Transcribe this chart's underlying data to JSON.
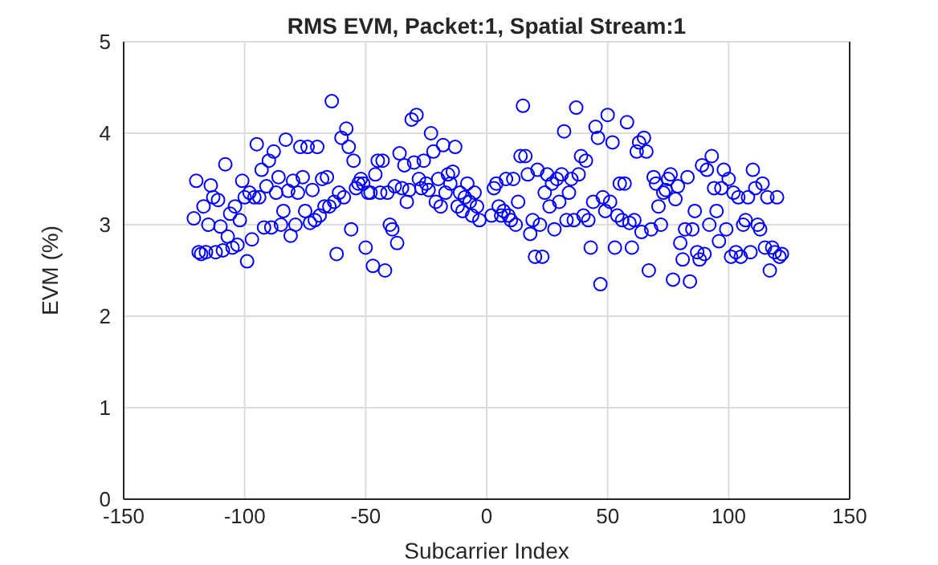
{
  "chart_data": {
    "type": "scatter",
    "title": "RMS EVM, Packet:1, Spatial Stream:1",
    "xlabel": "Subcarrier Index",
    "ylabel": "EVM (%)",
    "xlim": [
      -150,
      150
    ],
    "ylim": [
      0,
      5
    ],
    "xticks": [
      -150,
      -100,
      -50,
      0,
      50,
      100,
      150
    ],
    "yticks": [
      0,
      1,
      2,
      3,
      4,
      5
    ],
    "grid": true,
    "marker": "circle",
    "legend": false,
    "series": [
      {
        "color": "#0000ff",
        "x": [
          -121,
          -120,
          -119,
          -118,
          -117,
          -116,
          -115,
          -114,
          -113,
          -112,
          -111,
          -110,
          -109,
          -108,
          -107,
          -106,
          -105,
          -104,
          -103,
          -102,
          -101,
          -100,
          -99,
          -98,
          -97,
          -96,
          -95,
          -94,
          -93,
          -92,
          -91,
          -90,
          -89,
          -88,
          -87,
          -86,
          -85,
          -84,
          -83,
          -82,
          -81,
          -80,
          -79,
          -78,
          -77,
          -76,
          -75,
          -74,
          -73,
          -72,
          -71,
          -70,
          -69,
          -68,
          -67,
          -66,
          -65,
          -64,
          -63,
          -62,
          -61,
          -60,
          -59,
          -58,
          -57,
          -56,
          -55,
          -54,
          -53,
          -52,
          -51,
          -50,
          -49,
          -48,
          -47,
          -46,
          -45,
          -44,
          -43,
          -42,
          -41,
          -40,
          -39,
          -38,
          -37,
          -36,
          -35,
          -34,
          -33,
          -32,
          -31,
          -30,
          -29,
          -28,
          -27,
          -26,
          -25,
          -24,
          -23,
          -22,
          -21,
          -20,
          -19,
          -18,
          -17,
          -16,
          -15,
          -14,
          -13,
          -12,
          -11,
          -10,
          -9,
          -8,
          -7,
          -6,
          -5,
          -4,
          -3,
          2,
          3,
          4,
          5,
          6,
          7,
          8,
          9,
          10,
          11,
          12,
          13,
          14,
          15,
          16,
          17,
          18,
          19,
          20,
          21,
          22,
          23,
          24,
          25,
          26,
          27,
          28,
          29,
          30,
          31,
          32,
          33,
          34,
          35,
          36,
          37,
          38,
          39,
          40,
          41,
          42,
          43,
          44,
          45,
          46,
          47,
          48,
          49,
          50,
          51,
          52,
          53,
          54,
          55,
          56,
          57,
          58,
          59,
          60,
          61,
          62,
          63,
          64,
          65,
          66,
          67,
          68,
          69,
          70,
          71,
          72,
          73,
          74,
          75,
          76,
          77,
          78,
          79,
          80,
          81,
          82,
          83,
          84,
          85,
          86,
          87,
          88,
          89,
          90,
          91,
          92,
          93,
          94,
          95,
          96,
          97,
          98,
          99,
          100,
          101,
          102,
          103,
          104,
          105,
          106,
          107,
          108,
          109,
          110,
          111,
          112,
          113,
          114,
          115,
          116,
          117,
          118,
          119,
          120,
          121,
          122
        ],
        "values": [
          3.07,
          3.48,
          2.7,
          2.68,
          3.2,
          2.7,
          3.0,
          3.43,
          3.3,
          2.7,
          3.27,
          2.98,
          2.72,
          3.66,
          2.87,
          3.12,
          2.75,
          3.2,
          2.78,
          3.05,
          3.48,
          3.3,
          2.6,
          3.35,
          2.84,
          3.3,
          3.88,
          3.3,
          3.6,
          2.97,
          3.42,
          3.7,
          2.97,
          3.8,
          3.35,
          3.52,
          3.0,
          3.15,
          3.93,
          3.37,
          2.88,
          3.48,
          3.0,
          3.35,
          3.85,
          3.52,
          3.15,
          3.85,
          3.02,
          3.38,
          3.05,
          3.85,
          3.1,
          3.5,
          3.2,
          3.52,
          3.2,
          4.35,
          3.25,
          2.68,
          3.35,
          3.95,
          3.3,
          4.05,
          3.85,
          2.95,
          3.7,
          3.4,
          3.45,
          3.5,
          3.45,
          2.75,
          3.35,
          3.35,
          2.55,
          3.55,
          3.7,
          3.35,
          3.7,
          2.5,
          3.35,
          3.0,
          2.95,
          3.42,
          2.8,
          3.78,
          3.4,
          3.65,
          3.25,
          3.38,
          4.15,
          3.68,
          4.2,
          3.5,
          3.4,
          3.7,
          3.45,
          3.38,
          4.0,
          3.8,
          3.25,
          3.5,
          3.2,
          3.87,
          3.35,
          3.55,
          3.45,
          3.58,
          3.85,
          3.2,
          3.35,
          3.15,
          3.3,
          3.45,
          3.25,
          3.1,
          3.35,
          3.2,
          3.05,
          3.1,
          3.4,
          3.45,
          3.2,
          3.1,
          3.15,
          3.5,
          3.1,
          3.05,
          3.5,
          3.0,
          3.25,
          3.75,
          4.3,
          3.75,
          3.55,
          2.9,
          3.05,
          2.65,
          3.6,
          3.0,
          2.65,
          3.35,
          3.55,
          3.2,
          3.45,
          2.95,
          3.5,
          3.25,
          3.55,
          4.02,
          3.05,
          3.35,
          3.5,
          3.05,
          4.28,
          3.55,
          3.75,
          3.1,
          3.7,
          3.05,
          2.75,
          3.25,
          4.07,
          3.95,
          2.35,
          3.3,
          3.15,
          4.2,
          3.25,
          3.9,
          2.75,
          3.1,
          3.45,
          3.05,
          3.45,
          4.12,
          3.02,
          2.75,
          3.05,
          3.8,
          3.9,
          2.92,
          3.95,
          3.8,
          2.5,
          2.95,
          3.52,
          3.45,
          3.2,
          3.0,
          3.35,
          3.38,
          3.5,
          3.55,
          2.4,
          3.28,
          3.42,
          2.8,
          2.62,
          2.95,
          3.52,
          2.38,
          2.95,
          3.15,
          2.7,
          2.62,
          3.65,
          2.68,
          3.6,
          3.0,
          3.75,
          3.4,
          3.15,
          2.82,
          3.4,
          3.6,
          2.95,
          3.5,
          2.65,
          3.35,
          2.7,
          3.3,
          2.65,
          3.0,
          3.05,
          3.3,
          2.7,
          3.6,
          3.4,
          3.0,
          2.95,
          3.45,
          2.75,
          3.3,
          2.5,
          2.75,
          2.7,
          3.3,
          2.65,
          2.68
        ]
      }
    ]
  }
}
